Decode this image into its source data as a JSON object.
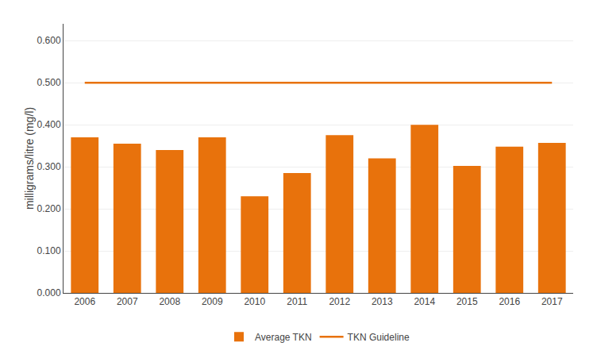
{
  "chart_data": {
    "type": "bar",
    "categories": [
      "2006",
      "2007",
      "2008",
      "2009",
      "2010",
      "2011",
      "2012",
      "2013",
      "2014",
      "2015",
      "2016",
      "2017"
    ],
    "series": [
      {
        "name": "Average TKN",
        "type": "bar",
        "color": "#E8720C",
        "values": [
          0.37,
          0.355,
          0.34,
          0.37,
          0.23,
          0.285,
          0.375,
          0.32,
          0.4,
          0.302,
          0.348,
          0.357
        ]
      },
      {
        "name": "TKN Guideline",
        "type": "line",
        "color": "#E8720C",
        "values": [
          0.5,
          0.5,
          0.5,
          0.5,
          0.5,
          0.5,
          0.5,
          0.5,
          0.5,
          0.5,
          0.5,
          0.5
        ]
      }
    ],
    "ylabel": "milligrams/litre (mg/l)",
    "ylim": [
      0.0,
      0.64
    ],
    "yticks": [
      {
        "value": 0.0,
        "label": "0.000"
      },
      {
        "value": 0.1,
        "label": "0.100"
      },
      {
        "value": 0.2,
        "label": "0.200"
      },
      {
        "value": 0.3,
        "label": "0.300"
      },
      {
        "value": 0.4,
        "label": "0.400"
      },
      {
        "value": 0.5,
        "label": "0.500"
      },
      {
        "value": 0.6,
        "label": "0.600"
      }
    ],
    "grid": true,
    "legend": "bottom"
  }
}
